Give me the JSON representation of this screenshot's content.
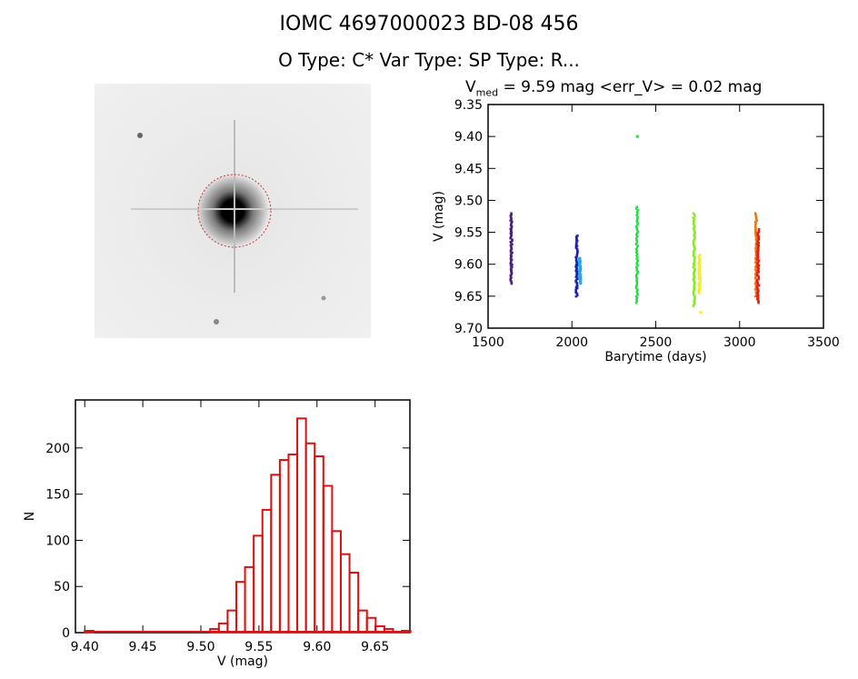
{
  "header": {
    "title": "IOMC 4697000023   BD-08   456",
    "subtitle": "O Type: C*  Var Type:    SP Type: R...",
    "lc_title_pre": "V",
    "lc_title_sub": "med",
    "lc_title_post": " = 9.59 mag <err_V> = 0.02 mag"
  },
  "chart_data": [
    {
      "type": "scatter",
      "xlabel": "Barytime (days)",
      "ylabel": "V (mag)",
      "xlim": [
        1500,
        3500
      ],
      "ylim": [
        9.7,
        9.35
      ],
      "y_inverted": true,
      "xticks": [
        1500,
        2000,
        2500,
        3000,
        3500
      ],
      "yticks": [
        9.35,
        9.4,
        9.45,
        9.5,
        9.55,
        9.6,
        9.65,
        9.7
      ],
      "clusters": [
        {
          "x": 1640,
          "ymin": 9.52,
          "ymax": 9.63,
          "color": "#4e1a80"
        },
        {
          "x": 2030,
          "ymin": 9.555,
          "ymax": 9.65,
          "color": "#1e22b0"
        },
        {
          "x": 2050,
          "ymin": 9.59,
          "ymax": 9.63,
          "color": "#22a8ee"
        },
        {
          "x": 2390,
          "ymin": 9.51,
          "ymax": 9.66,
          "color": "#22dd44"
        },
        {
          "x": 2730,
          "ymin": 9.52,
          "ymax": 9.665,
          "color": "#88e822"
        },
        {
          "x": 2762,
          "ymin": 9.585,
          "ymax": 9.645,
          "color": "#eeee33"
        },
        {
          "x": 3100,
          "ymin": 9.52,
          "ymax": 9.65,
          "color": "#e07a18"
        },
        {
          "x": 3112,
          "ymin": 9.545,
          "ymax": 9.66,
          "color": "#ee1a10"
        }
      ],
      "outliers": [
        {
          "x": 2390,
          "y": 9.4,
          "color": "#22dd44"
        },
        {
          "x": 2768,
          "y": 9.675,
          "color": "#eeee33"
        }
      ]
    },
    {
      "type": "bar",
      "subtype": "histogram",
      "xlabel": "V (mag)",
      "ylabel": "N",
      "xlim": [
        9.392,
        9.68
      ],
      "ylim": [
        0,
        252
      ],
      "xticks": [
        9.4,
        9.45,
        9.5,
        9.55,
        9.6,
        9.65
      ],
      "yticks": [
        0,
        50,
        100,
        150,
        200
      ],
      "bar_color": "#dd1111",
      "bin_width": 0.0075,
      "bins": [
        [
          9.4,
          1
        ],
        [
          9.508,
          3
        ],
        [
          9.5155,
          9
        ],
        [
          9.523,
          23
        ],
        [
          9.5305,
          54
        ],
        [
          9.538,
          70
        ],
        [
          9.5455,
          104
        ],
        [
          9.553,
          132
        ],
        [
          9.5605,
          170
        ],
        [
          9.568,
          186
        ],
        [
          9.5755,
          192
        ],
        [
          9.583,
          231
        ],
        [
          9.5905,
          204
        ],
        [
          9.598,
          190
        ],
        [
          9.6055,
          158
        ],
        [
          9.613,
          109
        ],
        [
          9.6205,
          84
        ],
        [
          9.628,
          64
        ],
        [
          9.6355,
          23
        ],
        [
          9.643,
          15
        ],
        [
          9.6505,
          6
        ],
        [
          9.658,
          3
        ],
        [
          9.6655,
          0
        ],
        [
          9.673,
          1
        ]
      ]
    }
  ]
}
